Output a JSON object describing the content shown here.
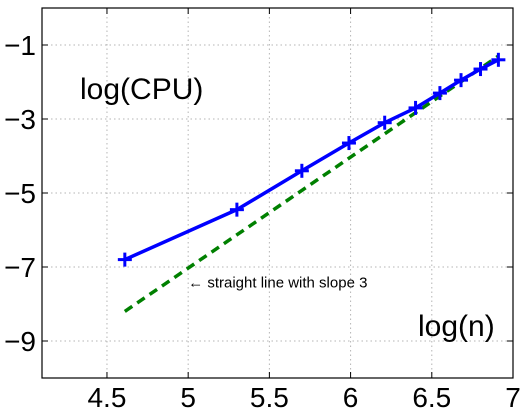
{
  "chart_data": {
    "type": "line",
    "title": "",
    "xlabel": "log(n)",
    "ylabel": "log(CPU)",
    "xlim": [
      4.1,
      7.0
    ],
    "ylim": [
      -10,
      0
    ],
    "xticks": [
      4.5,
      5,
      5.5,
      6,
      6.5,
      7
    ],
    "yticks": [
      -1,
      -3,
      -5,
      -7,
      -9
    ],
    "xtick_labels": [
      "4.5",
      "5",
      "5.5",
      "6",
      "6.5",
      "7"
    ],
    "ytick_labels": [
      "−1",
      "−3",
      "−5",
      "−7",
      "−9"
    ],
    "grid": true,
    "series": [
      {
        "name": "",
        "style": "solid",
        "marker": "+",
        "color": "#0000ff",
        "x": [
          4.61,
          5.3,
          5.7,
          5.99,
          6.21,
          6.4,
          6.55,
          6.68,
          6.8,
          6.91
        ],
        "y": [
          -6.8,
          -5.45,
          -4.4,
          -3.65,
          -3.1,
          -2.7,
          -2.3,
          -1.95,
          -1.65,
          -1.4
        ]
      },
      {
        "name": "",
        "style": "dashed",
        "color": "#008000",
        "x": [
          4.61,
          6.91
        ],
        "y": [
          -8.2,
          -1.3
        ]
      }
    ],
    "annotations": [
      {
        "text": "← straight line with slope 3",
        "x": 5.0,
        "y": -7.55
      }
    ]
  }
}
